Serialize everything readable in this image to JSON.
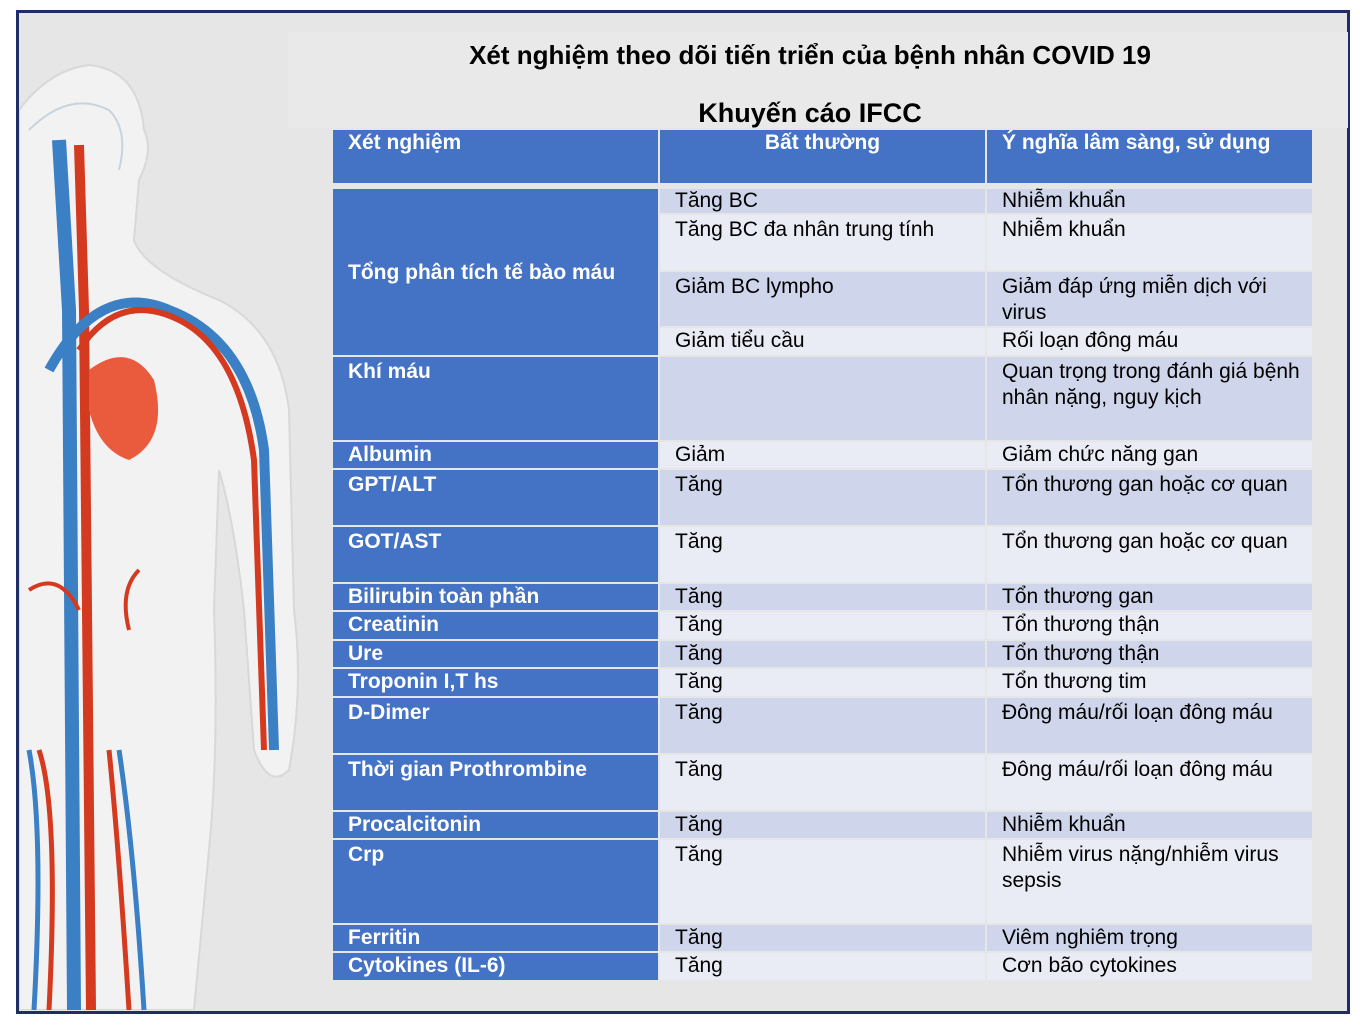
{
  "title": "Xét nghiệm theo dõi tiến triển của bệnh nhân COVID 19",
  "subtitle": "Khuyến cáo IFCC",
  "colors": {
    "header": "#4472c4",
    "row_dark": "#cfd5ea",
    "row_light": "#e9ebf5",
    "frame": "#1f2f66"
  },
  "table": {
    "headers": [
      "Xét nghiệm",
      "Bất thường",
      "Ý nghĩa lâm sàng, sử dụng"
    ],
    "group": {
      "test": "Tổng phân tích tế bào máu",
      "subrows": [
        {
          "abnormal": "Tăng BC",
          "meaning": "Nhiễm khuẩn"
        },
        {
          "abnormal": "Tăng BC đa nhân trung tính",
          "meaning": "Nhiễm khuẩn"
        },
        {
          "abnormal": "Giảm BC lympho",
          "meaning": "Giảm đáp ứng miễn dịch với virus"
        },
        {
          "abnormal": "Giảm tiểu cầu",
          "meaning": "Rối loạn đông máu"
        }
      ]
    },
    "rows": [
      {
        "test": "Khí máu",
        "abnormal": "",
        "meaning": "Quan trọng trong đánh giá bệnh nhân nặng, nguy kịch"
      },
      {
        "test": "Albumin",
        "abnormal": "Giảm",
        "meaning": "Giảm chức năng gan"
      },
      {
        "test": "GPT/ALT",
        "abnormal": "Tăng",
        "meaning": "Tổn thương gan hoặc cơ quan"
      },
      {
        "test": "GOT/AST",
        "abnormal": "Tăng",
        "meaning": "Tổn thương gan hoặc cơ quan"
      },
      {
        "test": "Bilirubin toàn phần",
        "abnormal": "Tăng",
        "meaning": "Tổn thương gan"
      },
      {
        "test": "Creatinin",
        "abnormal": "Tăng",
        "meaning": "Tổn thương thận"
      },
      {
        "test": "Ure",
        "abnormal": "Tăng",
        "meaning": "Tổn thương thận"
      },
      {
        "test": "Troponin I,T hs",
        "abnormal": "Tăng",
        "meaning": "Tổn thương tim"
      },
      {
        "test": "D-Dimer",
        "abnormal": "Tăng",
        "meaning": "Đông máu/rối loạn đông máu"
      },
      {
        "test": "Thời gian Prothrombine",
        "abnormal": "Tăng",
        "meaning": "Đông máu/rối loạn đông máu"
      },
      {
        "test": "Procalcitonin",
        "abnormal": "Tăng",
        "meaning": "Nhiễm khuẩn"
      },
      {
        "test": "Crp",
        "abnormal": "Tăng",
        "meaning": "Nhiễm virus nặng/nhiễm virus sepsis"
      },
      {
        "test": "Ferritin",
        "abnormal": "Tăng",
        "meaning": "Viêm nghiêm trọng"
      },
      {
        "test": "Cytokines (IL-6)",
        "abnormal": "Tăng",
        "meaning": "Cơn bão cytokines"
      }
    ]
  }
}
